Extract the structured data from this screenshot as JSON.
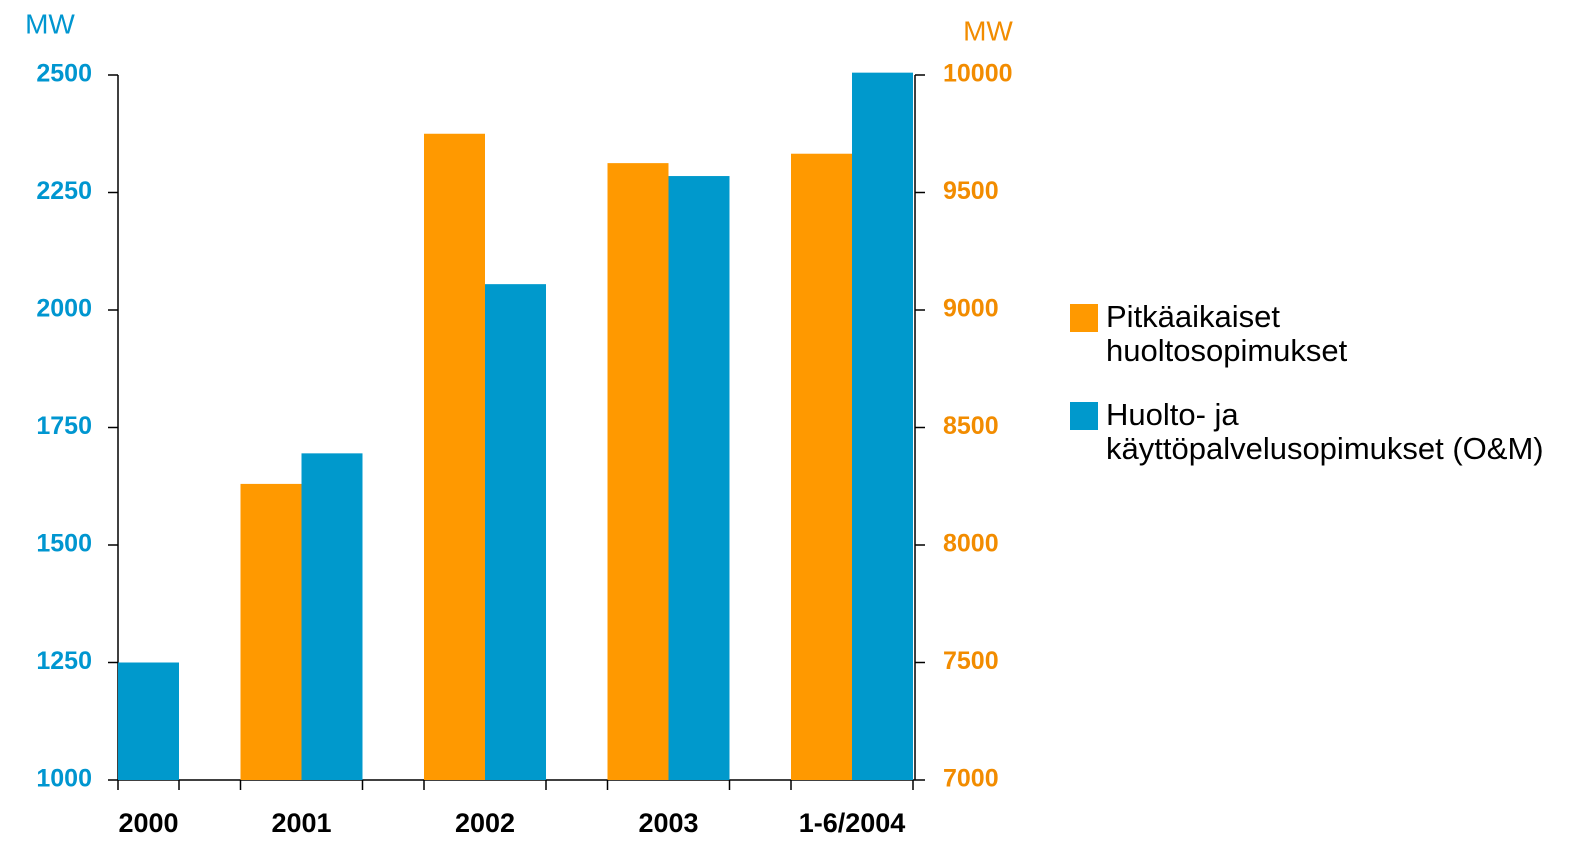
{
  "chart_data": {
    "type": "bar",
    "y_label": "MW",
    "y2_label": "MW",
    "categories": [
      "2000",
      "2001",
      "2002",
      "2003",
      "1-6/2004"
    ],
    "series": [
      {
        "name": "Pitkäaikaiset huoltosopimukset",
        "color": "#ff9900",
        "axis": "y2",
        "values": [
          null,
          8260,
          9750,
          9625,
          9665
        ]
      },
      {
        "name": "Huolto- ja käyttöpalvelusopimukset (O&M)",
        "color": "#0099cc",
        "values": [
          1250,
          1695,
          2055,
          2285,
          2505
        ]
      }
    ],
    "ylim": [
      1000,
      2500
    ],
    "yticks": [
      1000,
      1250,
      1500,
      1750,
      2000,
      2250,
      2500
    ],
    "y2lim": [
      7000,
      10000
    ],
    "y2ticks": [
      7000,
      7500,
      8000,
      8500,
      9000,
      9500,
      10000
    ],
    "y_color": "#0096d0",
    "y2_color": "#f28c00",
    "legend": "right"
  }
}
